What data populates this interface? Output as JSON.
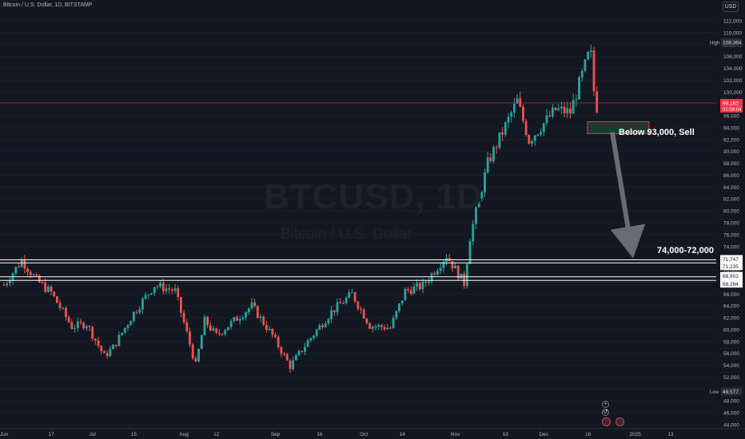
{
  "header": {
    "symbol_title": "Bitcoin / U.S. Dollar, 1D, BITSTAMP",
    "currency": "USD"
  },
  "watermark": {
    "ticker": "BTCUSD, 1D",
    "name": "Bitcoin / U.S. Dollar"
  },
  "price_axis": {
    "ticks": [
      "112,000",
      "110,000",
      "108,000",
      "106,000",
      "104,000",
      "102,000",
      "100,000",
      "98,000",
      "96,000",
      "94,000",
      "92,000",
      "90,000",
      "88,000",
      "86,000",
      "84,000",
      "82,000",
      "80,000",
      "78,000",
      "76,000",
      "74,000",
      "72,000",
      "70,000",
      "68,000",
      "66,000",
      "64,000",
      "62,000",
      "60,000",
      "58,000",
      "56,000",
      "54,000",
      "52,000",
      "50,000",
      "48,000",
      "46,000",
      "44,000"
    ],
    "high_label": "High",
    "high_value": "108,364",
    "low_label": "Low",
    "low_value": "49,577",
    "last_price": "98,162",
    "countdown": "01:04:04",
    "level_labels": [
      "71,747",
      "71,235",
      "68,902",
      "68,284"
    ]
  },
  "time_axis": {
    "ticks": [
      "Jun",
      "17",
      "Jul",
      "15",
      "Aug",
      "12",
      "Sep",
      "16",
      "Oct",
      "14",
      "Nov",
      "18",
      "Dec",
      "16",
      "2025",
      "13"
    ]
  },
  "annotations": {
    "sell_text": "Below 93,000, Sell",
    "target_text": "74,000-72,000"
  },
  "controls": {
    "plus": "+",
    "reset": "↺"
  },
  "colors": {
    "background": "#131722",
    "up": "#26a69a",
    "down": "#ef5350",
    "level_line": "#ffffff",
    "last_price": "#f23645",
    "arrow": "#787b86",
    "sell_box_border": "#f23645",
    "sell_box_fill": "#1b3b32"
  },
  "chart_data": {
    "type": "candlestick",
    "title": "",
    "symbol": "BTCUSD",
    "interval": "1D",
    "y_range": [
      44000,
      112000
    ],
    "x_ticks": [
      "Jun",
      "17",
      "Jul",
      "15",
      "Aug",
      "12",
      "Sep",
      "16",
      "Oct",
      "14",
      "Nov",
      "18",
      "Dec",
      "16",
      "2025",
      "13"
    ],
    "high": 108364,
    "low": 49577,
    "last": 98162,
    "horizontal_levels": [
      71747,
      71235,
      68902,
      68284
    ],
    "sell_zone": {
      "from": 95000,
      "to": 93000
    },
    "target_zone": [
      74000,
      72000
    ],
    "anchors": [
      [
        "2024-06-01",
        67500
      ],
      [
        "2024-06-07",
        71700
      ],
      [
        "2024-06-12",
        68300
      ],
      [
        "2024-06-17",
        66200
      ],
      [
        "2024-06-24",
        60500
      ],
      [
        "2024-06-29",
        61000
      ],
      [
        "2024-07-05",
        55500
      ],
      [
        "2024-07-08",
        57000
      ],
      [
        "2024-07-15",
        62800
      ],
      [
        "2024-07-22",
        67500
      ],
      [
        "2024-07-29",
        66500
      ],
      [
        "2024-08-05",
        54000
      ],
      [
        "2024-08-08",
        61500
      ],
      [
        "2024-08-12",
        59000
      ],
      [
        "2024-08-24",
        64000
      ],
      [
        "2024-08-31",
        59000
      ],
      [
        "2024-09-06",
        53800
      ],
      [
        "2024-09-12",
        58000
      ],
      [
        "2024-09-20",
        63000
      ],
      [
        "2024-09-27",
        66000
      ],
      [
        "2024-10-03",
        60700
      ],
      [
        "2024-10-10",
        60300
      ],
      [
        "2024-10-15",
        66500
      ],
      [
        "2024-10-21",
        67400
      ],
      [
        "2024-10-29",
        72500
      ],
      [
        "2024-11-04",
        67800
      ],
      [
        "2024-11-06",
        75600
      ],
      [
        "2024-11-12",
        88000
      ],
      [
        "2024-11-22",
        98500
      ],
      [
        "2024-11-26",
        91900
      ],
      [
        "2024-12-05",
        97000
      ],
      [
        "2024-12-10",
        96600
      ],
      [
        "2024-12-16",
        106000
      ],
      [
        "2024-12-17",
        106100
      ],
      [
        "2024-12-18",
        100200
      ],
      [
        "2024-12-19",
        97500
      ]
    ]
  }
}
